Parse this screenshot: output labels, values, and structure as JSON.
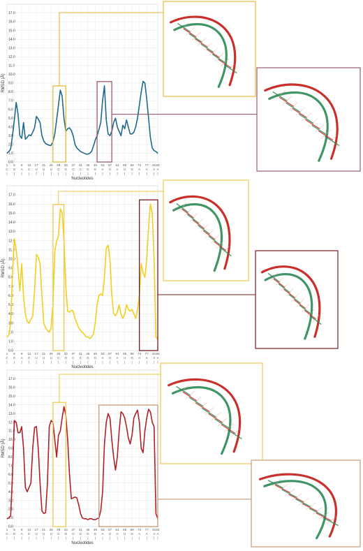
{
  "chart_data": [
    {
      "type": "line",
      "ylabel": "RMSD (Å)",
      "xlabel": "Nucleotides",
      "ylim": [
        0,
        18
      ],
      "yticks": [
        "0.0",
        "1.0",
        "2.0",
        "3.0",
        "4.0",
        "5.0",
        "6.0",
        "7.0",
        "8.0",
        "9.0",
        "10.0",
        "11.0",
        "12.0",
        "13.0",
        "14.0",
        "15.0",
        "16.0",
        "17.0"
      ],
      "xticks": [
        "1",
        "5",
        "9",
        "13",
        "17",
        "21",
        "25",
        "29",
        "33",
        "37",
        "41",
        "45",
        "49",
        "53",
        "57",
        "61",
        "65",
        "69",
        "73",
        "77",
        "81",
        "83"
      ],
      "xletters": [
        "C",
        "G",
        "A",
        "C",
        "U",
        "U",
        "U",
        "C",
        "G",
        "C",
        "C",
        "G",
        "G",
        "A",
        "U",
        "A",
        "U",
        "G",
        "A",
        "A",
        "A",
        "A"
      ],
      "grid": true,
      "color": "#1f6a8c",
      "x": [
        1,
        2,
        3,
        4,
        5,
        6,
        7,
        8,
        9,
        10,
        11,
        12,
        13,
        14,
        15,
        16,
        17,
        18,
        19,
        20,
        21,
        22,
        23,
        24,
        25,
        26,
        27,
        28,
        29,
        30,
        31,
        32,
        33,
        34,
        35,
        36,
        37,
        38,
        39,
        40,
        41,
        42,
        43,
        44,
        45,
        46,
        47,
        48,
        49,
        50,
        51,
        52,
        53,
        54,
        55,
        56,
        57,
        58,
        59,
        60,
        61,
        62,
        63,
        64,
        65,
        66,
        67,
        68,
        69,
        70,
        71,
        72,
        73,
        74,
        75,
        76,
        77,
        78,
        79,
        80,
        81,
        82,
        83
      ],
      "y": [
        1.0,
        1.2,
        1.5,
        3.0,
        4.8,
        6.8,
        5.5,
        3.0,
        2.7,
        4.5,
        2.6,
        2.8,
        3.1,
        3.0,
        3.4,
        3.9,
        5.2,
        4.9,
        4.5,
        3.0,
        2.4,
        2.1,
        2.0,
        1.9,
        1.9,
        2.3,
        3.2,
        4.8,
        6.5,
        8.2,
        7.5,
        5.0,
        3.5,
        3.8,
        3.9,
        3.6,
        3.0,
        2.0,
        1.6,
        1.4,
        1.2,
        1.1,
        1.0,
        0.9,
        0.9,
        1.0,
        1.2,
        1.8,
        2.5,
        3.0,
        3.7,
        4.5,
        7.0,
        8.7,
        4.8,
        3.2,
        3.0,
        3.5,
        4.5,
        5.0,
        4.0,
        3.5,
        3.0,
        4.2,
        3.8,
        4.8,
        4.0,
        3.2,
        3.2,
        3.4,
        4.0,
        5.0,
        6.5,
        8.0,
        9.2,
        9.0,
        7.2,
        5.0,
        2.8,
        1.6,
        1.3,
        1.2,
        1.0
      ],
      "highlight_ranges": [
        [
          26,
          33
        ],
        [
          50,
          58
        ]
      ]
    },
    {
      "type": "line",
      "ylabel": "RMSD (Å)",
      "xlabel": "Nucleotides",
      "ylim": [
        0,
        18
      ],
      "yticks": [
        "0.0",
        "1.0",
        "2.0",
        "3.0",
        "4.0",
        "5.0",
        "6.0",
        "7.0",
        "8.0",
        "9.0",
        "10.0",
        "11.0",
        "12.0",
        "13.0",
        "14.0",
        "15.0",
        "16.0",
        "17.0"
      ],
      "xticks": [
        "1",
        "5",
        "9",
        "13",
        "17",
        "21",
        "25",
        "29",
        "33",
        "37",
        "41",
        "45",
        "49",
        "53",
        "57",
        "61",
        "65",
        "69",
        "73",
        "77",
        "81",
        "83"
      ],
      "xletters": [
        "C",
        "G",
        "A",
        "C",
        "U",
        "U",
        "U",
        "C",
        "G",
        "C",
        "C",
        "G",
        "G",
        "A",
        "U",
        "A",
        "U",
        "G",
        "A",
        "A",
        "A",
        "A"
      ],
      "grid": true,
      "color": "#f2cf1e",
      "x": [
        1,
        2,
        3,
        4,
        5,
        6,
        7,
        8,
        9,
        10,
        11,
        12,
        13,
        14,
        15,
        16,
        17,
        18,
        19,
        20,
        21,
        22,
        23,
        24,
        25,
        26,
        27,
        28,
        29,
        30,
        31,
        32,
        33,
        34,
        35,
        36,
        37,
        38,
        39,
        40,
        41,
        42,
        43,
        44,
        45,
        46,
        47,
        48,
        49,
        50,
        51,
        52,
        53,
        54,
        55,
        56,
        57,
        58,
        59,
        60,
        61,
        62,
        63,
        64,
        65,
        66,
        67,
        68,
        69,
        70,
        71,
        72,
        73,
        74,
        75,
        76,
        77,
        78,
        79,
        80,
        81,
        82,
        83
      ],
      "y": [
        1.5,
        1.7,
        3.0,
        8.5,
        12.2,
        11.0,
        9.0,
        6.5,
        9.5,
        6.0,
        4.0,
        3.2,
        3.0,
        3.4,
        3.8,
        6.5,
        10.5,
        10.2,
        9.5,
        6.0,
        3.0,
        2.5,
        2.2,
        2.0,
        2.5,
        5.0,
        10.8,
        12.0,
        12.5,
        15.5,
        15.0,
        12.0,
        7.0,
        4.3,
        4.2,
        4.4,
        4.3,
        3.5,
        3.0,
        2.5,
        2.2,
        2.0,
        1.8,
        1.5,
        1.5,
        1.3,
        1.5,
        1.8,
        3.0,
        5.0,
        6.0,
        6.2,
        6.0,
        8.0,
        11.2,
        11.5,
        10.0,
        6.0,
        4.0,
        3.8,
        4.2,
        5.0,
        4.0,
        3.5,
        4.0,
        5.0,
        4.5,
        4.3,
        4.5,
        4.0,
        3.5,
        4.5,
        6.0,
        9.5,
        8.5,
        8.0,
        10.0,
        13.5,
        16.0,
        15.0,
        10.0,
        1.5,
        1.2
      ],
      "highlight_ranges": [
        [
          26,
          32
        ],
        [
          73,
          83
        ]
      ]
    },
    {
      "type": "line",
      "ylabel": "RMSD (Å)",
      "xlabel": "Nucleotides",
      "ylim": [
        0,
        18
      ],
      "yticks": [
        "0.0",
        "1.0",
        "2.0",
        "3.0",
        "4.0",
        "5.0",
        "6.0",
        "7.0",
        "8.0",
        "9.0",
        "10.0",
        "11.0",
        "12.0",
        "13.0",
        "14.0",
        "15.0",
        "16.0",
        "17.0"
      ],
      "xticks": [
        "1",
        "5",
        "9",
        "13",
        "17",
        "21",
        "25",
        "29",
        "33",
        "37",
        "41",
        "45",
        "49",
        "53",
        "57",
        "61",
        "65",
        "69",
        "73",
        "77",
        "81",
        "83"
      ],
      "xletters": [
        "C",
        "G",
        "A",
        "C",
        "U",
        "U",
        "U",
        "C",
        "G",
        "C",
        "C",
        "G",
        "G",
        "A",
        "U",
        "A",
        "U",
        "G",
        "A",
        "A",
        "A",
        "A"
      ],
      "grid": true,
      "color": "#b0202b",
      "x": [
        1,
        2,
        3,
        4,
        5,
        6,
        7,
        8,
        9,
        10,
        11,
        12,
        13,
        14,
        15,
        16,
        17,
        18,
        19,
        20,
        21,
        22,
        23,
        24,
        25,
        26,
        27,
        28,
        29,
        30,
        31,
        32,
        33,
        34,
        35,
        36,
        37,
        38,
        39,
        40,
        41,
        42,
        43,
        44,
        45,
        46,
        47,
        48,
        49,
        50,
        51,
        52,
        53,
        54,
        55,
        56,
        57,
        58,
        59,
        60,
        61,
        62,
        63,
        64,
        65,
        66,
        67,
        68,
        69,
        70,
        71,
        72,
        73,
        74,
        75,
        76,
        77,
        78,
        79,
        80,
        81,
        82,
        83
      ],
      "y": [
        0.9,
        1.0,
        1.2,
        6.0,
        12.2,
        12.0,
        10.8,
        10.8,
        11.5,
        9.0,
        4.5,
        4.0,
        4.5,
        5.0,
        9.0,
        11.4,
        11.5,
        9.0,
        5.0,
        1.8,
        1.5,
        1.6,
        5.0,
        11.5,
        12.2,
        12.0,
        10.0,
        8.0,
        10.5,
        11.0,
        12.5,
        13.8,
        12.8,
        10.0,
        6.0,
        3.2,
        3.3,
        3.4,
        3.3,
        2.5,
        1.5,
        1.0,
        0.9,
        0.9,
        0.8,
        0.9,
        0.9,
        0.8,
        0.8,
        0.9,
        1.0,
        1.8,
        4.0,
        9.5,
        12.0,
        13.0,
        12.5,
        10.0,
        8.0,
        6.5,
        8.0,
        11.0,
        13.2,
        13.0,
        12.5,
        11.5,
        10.2,
        9.5,
        10.5,
        12.5,
        13.0,
        13.4,
        12.0,
        9.0,
        8.5,
        11.0,
        12.5,
        13.5,
        13.2,
        12.0,
        11.5,
        1.5,
        0.9
      ],
      "highlight_ranges": [
        [
          26,
          33
        ],
        [
          51,
          83
        ]
      ]
    }
  ]
}
